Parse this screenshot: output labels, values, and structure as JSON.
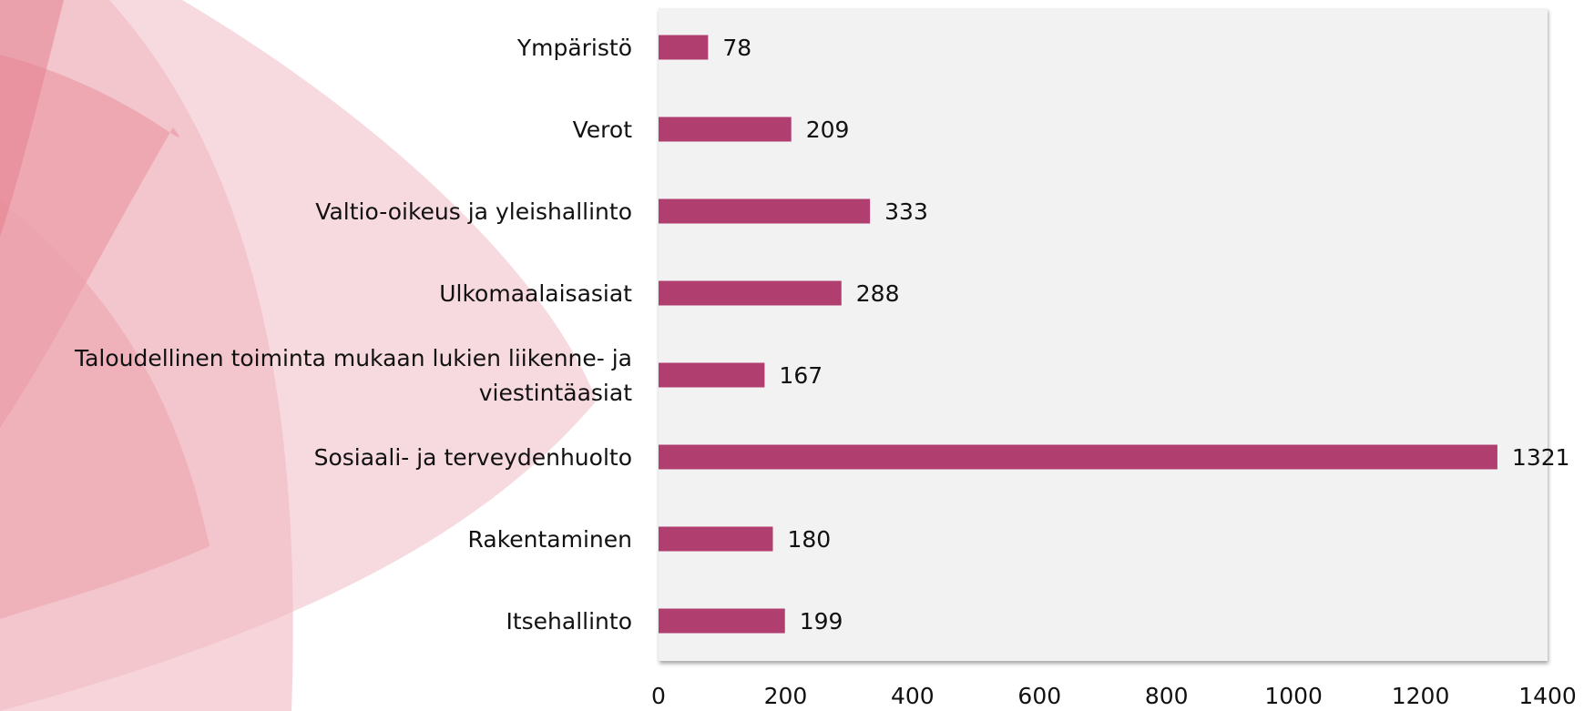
{
  "chart_data": {
    "type": "bar",
    "orientation": "horizontal",
    "categories": [
      "Ympäristö",
      "Verot",
      "Valtio-oikeus ja yleishallinto",
      "Ulkomaalaisasiat",
      "Taloudellinen toiminta mukaan lukien liikenne- ja viestintäasiat",
      "Sosiaali- ja terveydenhuolto",
      "Rakentaminen",
      "Itsehallinto"
    ],
    "values": [
      78,
      209,
      333,
      288,
      167,
      1321,
      180,
      199
    ],
    "color": "#b03e6e",
    "xlim": [
      0,
      1400
    ],
    "xticks": [
      0,
      200,
      400,
      600,
      800,
      1000,
      1200,
      1400
    ],
    "grid": false,
    "data_labels": true
  }
}
